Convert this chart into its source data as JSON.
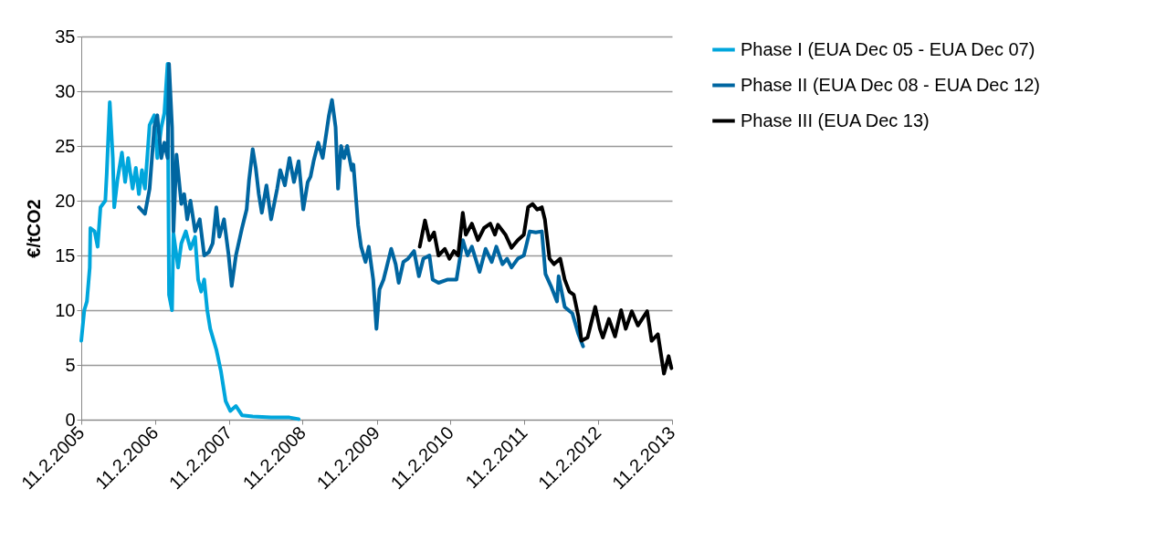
{
  "chart_data": {
    "type": "line",
    "ylabel": "€/tCO2",
    "xlim": [
      "2005-02-11",
      "2013-02-11"
    ],
    "ylim": [
      0,
      35
    ],
    "yticks": [
      0,
      5,
      10,
      15,
      20,
      25,
      30,
      35
    ],
    "xticks": [
      {
        "value": "2005-02-11",
        "label": "11.2.2005"
      },
      {
        "value": "2006-02-11",
        "label": "11.2.2006"
      },
      {
        "value": "2007-02-11",
        "label": "11.2.2007"
      },
      {
        "value": "2008-02-11",
        "label": "11.2.2008"
      },
      {
        "value": "2009-02-11",
        "label": "11.2.2009"
      },
      {
        "value": "2010-02-11",
        "label": "11.2.2010"
      },
      {
        "value": "2011-02-11",
        "label": "11.2.2011"
      },
      {
        "value": "2012-02-11",
        "label": "11.2.2012"
      },
      {
        "value": "2013-02-11",
        "label": "11.2.2013"
      }
    ],
    "grid": "y",
    "legend": "right",
    "marker": "none",
    "line_style": "solid",
    "series": [
      {
        "name": "Phase I (EUA Dec 05 - EUA Dec 07)",
        "color": "#00a6dc",
        "x": [
          "2005-02-11",
          "2005-02-26",
          "2005-03-11",
          "2005-03-25",
          "2005-03-28",
          "2005-04-18",
          "2005-05-03",
          "2005-05-17",
          "2005-06-10",
          "2005-06-17",
          "2005-07-02",
          "2005-07-17",
          "2005-07-24",
          "2005-08-09",
          "2005-08-31",
          "2005-09-16",
          "2005-10-01",
          "2005-10-23",
          "2005-11-08",
          "2005-11-23",
          "2005-12-08",
          "2005-12-23",
          "2006-01-15",
          "2006-02-07",
          "2006-02-22",
          "2006-03-14",
          "2006-03-29",
          "2006-04-14",
          "2006-04-21",
          "2006-05-06",
          "2006-05-13",
          "2006-06-05",
          "2006-06-21",
          "2006-07-13",
          "2006-08-05",
          "2006-08-28",
          "2006-09-12",
          "2006-09-27",
          "2006-10-12",
          "2006-10-27",
          "2006-11-11",
          "2006-12-11",
          "2007-01-03",
          "2007-01-26",
          "2007-02-18",
          "2007-03-18",
          "2007-04-17",
          "2007-06-09",
          "2007-09-08",
          "2007-12-08",
          "2008-01-22"
        ],
        "values": [
          7.2,
          10,
          10.8,
          13.9,
          17.5,
          17.2,
          15.8,
          19.4,
          20,
          22.5,
          29,
          23.9,
          19.4,
          21.9,
          24.4,
          21.7,
          23.9,
          21.1,
          23,
          20.6,
          22.8,
          21.1,
          26.9,
          27.8,
          23.9,
          26.7,
          28,
          32.5,
          11.4,
          10,
          17,
          13.9,
          16.1,
          17.2,
          15.6,
          16.7,
          12.8,
          11.7,
          12.8,
          10,
          8.3,
          6.4,
          4.4,
          1.7,
          0.8,
          1.25,
          0.4,
          0.3,
          0.2,
          0.2,
          0.05
        ]
      },
      {
        "name": "Phase II (EUA Dec 08 - EUA Dec 12)",
        "color": "#0066a1",
        "x": [
          "2005-11-23",
          "2005-12-23",
          "2006-01-15",
          "2006-02-07",
          "2006-02-22",
          "2006-03-14",
          "2006-03-29",
          "2006-04-14",
          "2006-04-21",
          "2006-05-06",
          "2006-05-13",
          "2006-05-28",
          "2006-06-21",
          "2006-07-05",
          "2006-07-20",
          "2006-08-05",
          "2006-08-28",
          "2006-09-20",
          "2006-10-12",
          "2006-11-04",
          "2006-11-23",
          "2006-12-11",
          "2006-12-26",
          "2007-01-18",
          "2007-02-10",
          "2007-02-25",
          "2007-03-18",
          "2007-04-17",
          "2007-05-10",
          "2007-05-22",
          "2007-06-09",
          "2007-06-24",
          "2007-07-09",
          "2007-07-24",
          "2007-08-16",
          "2007-09-08",
          "2007-10-08",
          "2007-10-23",
          "2007-11-15",
          "2007-12-08",
          "2007-12-30",
          "2008-01-22",
          "2008-02-14",
          "2008-03-07",
          "2008-03-21",
          "2008-04-05",
          "2008-04-28",
          "2008-05-20",
          "2008-06-20",
          "2008-07-05",
          "2008-07-23",
          "2008-08-04",
          "2008-08-19",
          "2008-09-03",
          "2008-09-18",
          "2008-10-11",
          "2008-10-19",
          "2008-11-11",
          "2008-11-26",
          "2008-12-18",
          "2009-01-03",
          "2009-01-25",
          "2009-02-10",
          "2009-02-25",
          "2009-03-17",
          "2009-04-01",
          "2009-04-24",
          "2009-05-16",
          "2009-05-31",
          "2009-06-23",
          "2009-07-16",
          "2009-08-15",
          "2009-09-08",
          "2009-09-30",
          "2009-10-30",
          "2009-11-15",
          "2009-12-14",
          "2010-01-29",
          "2010-03-13",
          "2010-04-13",
          "2010-05-06",
          "2010-05-28",
          "2010-07-05",
          "2010-08-04",
          "2010-09-03",
          "2010-09-26",
          "2010-10-26",
          "2010-11-18",
          "2010-12-10",
          "2011-01-10",
          "2011-02-09",
          "2011-03-10",
          "2011-04-09",
          "2011-05-09",
          "2011-05-27",
          "2011-06-23",
          "2011-07-23",
          "2011-07-31",
          "2011-08-30",
          "2011-10-07",
          "2011-11-06",
          "2011-11-29"
        ],
        "values": [
          19.4,
          18.8,
          21.1,
          26.7,
          27.8,
          23.9,
          25.3,
          23.9,
          32.5,
          26.7,
          17.2,
          24.2,
          19.7,
          20.6,
          18.3,
          20,
          17.2,
          18.3,
          15,
          15.3,
          16.1,
          19.4,
          16.7,
          18.3,
          15,
          12.2,
          15,
          17.5,
          19.2,
          21.9,
          24.7,
          23,
          20.6,
          18.9,
          21.4,
          18.3,
          21.1,
          22.8,
          21.4,
          23.9,
          21.7,
          23.6,
          19.2,
          21.7,
          22.2,
          23.6,
          25.3,
          23.9,
          27.8,
          29.2,
          26.7,
          21.1,
          25,
          23.9,
          25,
          22.8,
          23.3,
          17.8,
          15.8,
          14.4,
          15.8,
          12.8,
          8.3,
          11.9,
          12.8,
          13.9,
          15.6,
          14.2,
          12.5,
          14.4,
          14.7,
          15.4,
          13.1,
          14.7,
          15,
          12.8,
          12.5,
          12.8,
          12.8,
          16.4,
          15,
          15.8,
          13.5,
          15.6,
          14.4,
          15.8,
          14.2,
          14.7,
          13.9,
          14.7,
          15,
          17.2,
          17.1,
          17.2,
          13.3,
          12.2,
          10.8,
          13.1,
          10.3,
          9.7,
          7.8,
          6.7
        ]
      },
      {
        "name": "Phase III (EUA Dec 13)",
        "color": "#000000",
        "x": [
          "2009-09-12",
          "2009-10-08",
          "2009-10-30",
          "2009-11-22",
          "2009-12-14",
          "2010-01-14",
          "2010-02-06",
          "2010-02-28",
          "2010-03-21",
          "2010-04-13",
          "2010-04-28",
          "2010-05-28",
          "2010-06-27",
          "2010-07-27",
          "2010-08-27",
          "2010-09-19",
          "2010-10-04",
          "2010-11-10",
          "2010-12-10",
          "2011-01-10",
          "2011-02-09",
          "2011-03-02",
          "2011-03-24",
          "2011-04-16",
          "2011-05-09",
          "2011-05-24",
          "2011-06-16",
          "2011-07-08",
          "2011-08-08",
          "2011-08-30",
          "2011-09-22",
          "2011-10-14",
          "2011-11-06",
          "2011-11-21",
          "2011-12-21",
          "2012-01-28",
          "2012-02-20",
          "2012-03-06",
          "2012-04-05",
          "2012-05-05",
          "2012-06-04",
          "2012-06-27",
          "2012-07-27",
          "2012-08-26",
          "2012-10-11",
          "2012-11-02",
          "2012-12-03",
          "2013-01-02",
          "2013-01-25",
          "2013-02-08"
        ],
        "values": [
          15.8,
          18.2,
          16.4,
          17.1,
          15,
          15.6,
          14.7,
          15.4,
          15,
          18.9,
          16.9,
          17.9,
          16.4,
          17.5,
          17.9,
          16.9,
          17.8,
          16.9,
          15.7,
          16.4,
          16.9,
          19.4,
          19.7,
          19.2,
          19.4,
          18.3,
          14.7,
          14.2,
          14.7,
          12.8,
          11.7,
          11.4,
          9.4,
          7.2,
          7.5,
          10.3,
          8.3,
          7.5,
          9.2,
          7.6,
          10,
          8.3,
          9.9,
          8.6,
          9.9,
          7.2,
          7.8,
          4.2,
          5.8,
          4.7
        ]
      }
    ]
  }
}
